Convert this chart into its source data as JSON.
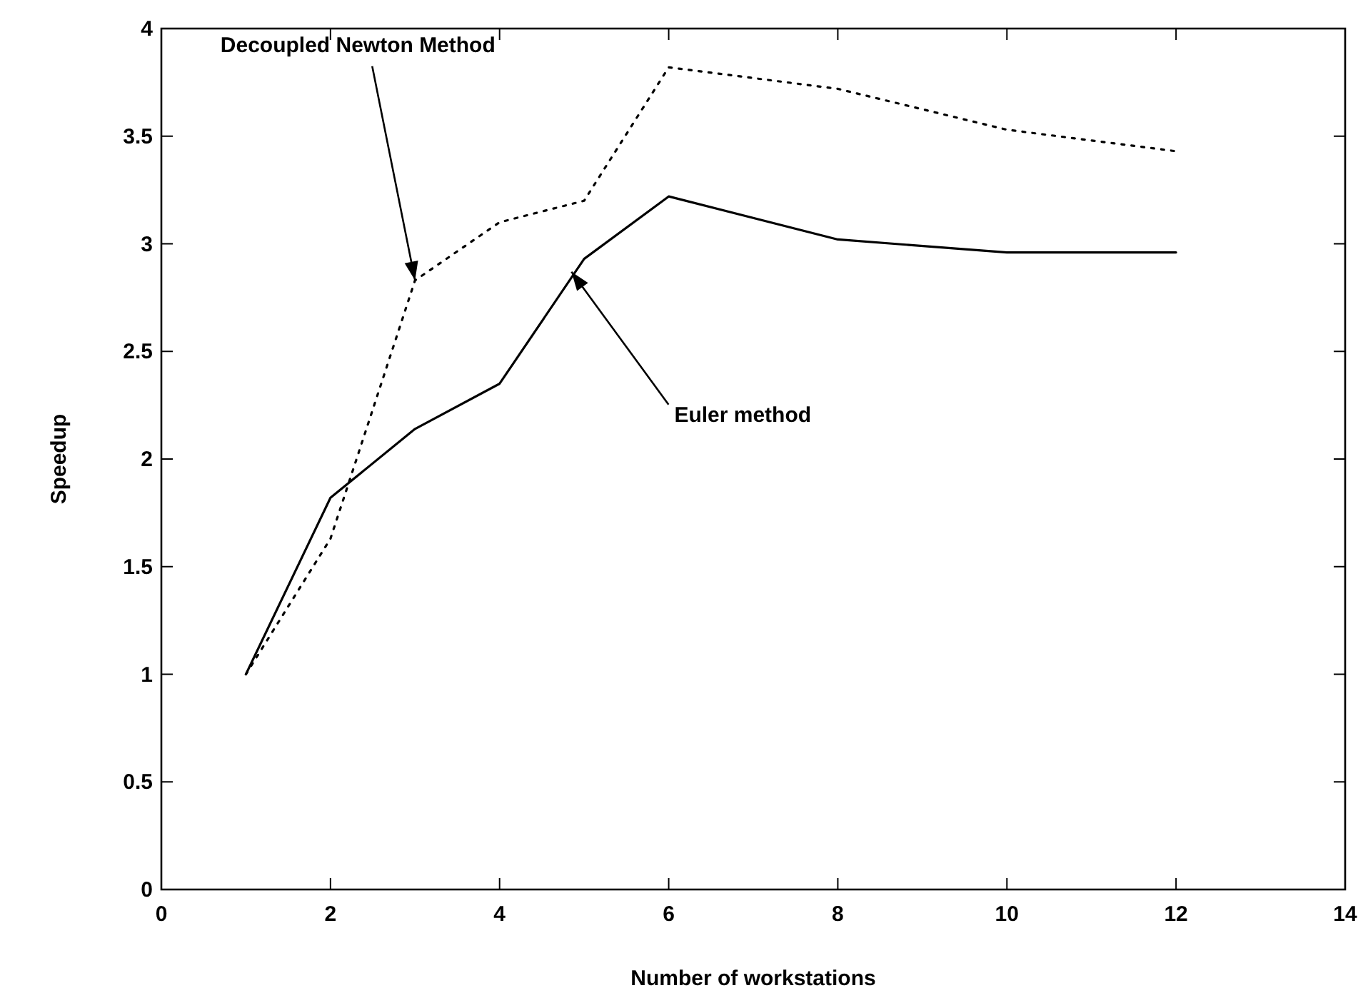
{
  "chart_data": {
    "type": "line",
    "xlabel": "Number of workstations",
    "ylabel": "Speedup",
    "xlim": [
      0,
      14
    ],
    "ylim": [
      0,
      4
    ],
    "xticks": [
      0,
      2,
      4,
      6,
      8,
      10,
      12,
      14
    ],
    "yticks": [
      0,
      0.5,
      1,
      1.5,
      2,
      2.5,
      3,
      3.5,
      4
    ],
    "grid": false,
    "marker": "none",
    "x": [
      1,
      2,
      3,
      4,
      5,
      6,
      8,
      10,
      12
    ],
    "series": [
      {
        "color": "#000000",
        "line_style": "solid",
        "values": [
          1,
          1.82,
          2.14,
          2.35,
          2.93,
          3.22,
          3.02,
          2.96,
          2.96
        ]
      },
      {
        "color": "#000000",
        "line_style": "dotted",
        "values": [
          1,
          1.63,
          2.83,
          3.1,
          3.2,
          3.82,
          3.72,
          3.53,
          3.43
        ]
      }
    ],
    "annotations": [
      {
        "text": "Decoupled Newton Method",
        "x": 3,
        "y": 2.83
      },
      {
        "text": "Euler method",
        "x": 4.85,
        "y": 2.87
      }
    ]
  }
}
